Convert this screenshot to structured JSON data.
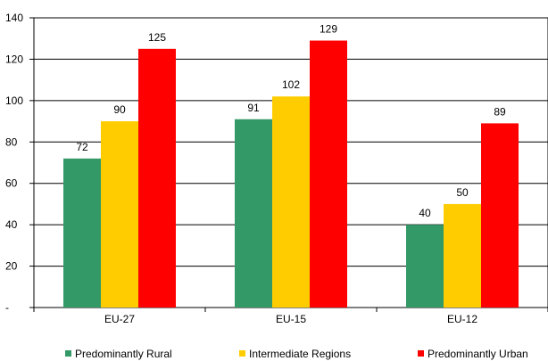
{
  "chart_data": {
    "type": "bar",
    "categories": [
      "EU-27",
      "EU-15",
      "EU-12"
    ],
    "series": [
      {
        "name": "Predominantly Rural",
        "values": [
          72,
          91,
          40
        ],
        "color": "#339966"
      },
      {
        "name": "Intermediate Regions",
        "values": [
          90,
          102,
          50
        ],
        "color": "#FFCC00"
      },
      {
        "name": "Predominantly Urban",
        "values": [
          125,
          129,
          89
        ],
        "color": "#FF0000"
      }
    ],
    "ylim": [
      0,
      140
    ],
    "yticks": [
      0,
      20,
      40,
      60,
      80,
      100,
      120,
      140
    ],
    "ytick_labels": [
      "-",
      "20",
      "40",
      "60",
      "80",
      "100",
      "120",
      "140"
    ],
    "grid": true,
    "legend_position": "bottom"
  }
}
